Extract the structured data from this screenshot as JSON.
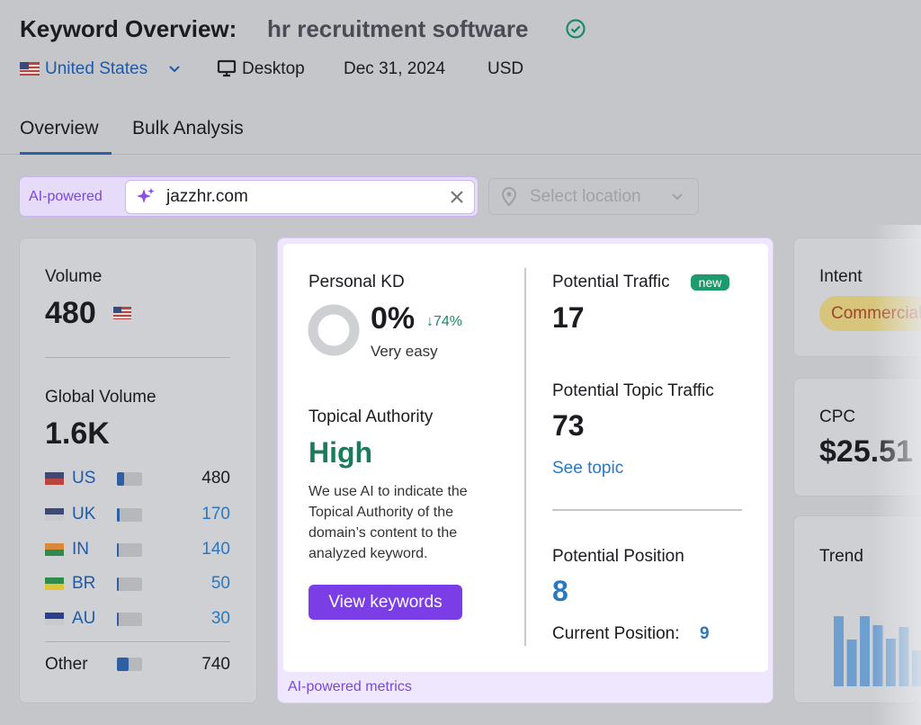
{
  "header": {
    "title": "Keyword Overview:",
    "keyword": "hr recruitment software",
    "country": "United States",
    "device": "Desktop",
    "date": "Dec 31, 2024",
    "currency": "USD"
  },
  "tabs": [
    "Overview",
    "Bulk Analysis"
  ],
  "search": {
    "badge": "AI-powered",
    "domain": "jazzhr.com",
    "location_placeholder": "Select location"
  },
  "volume": {
    "label": "Volume",
    "value": 480,
    "global_label": "Global Volume",
    "global_value": "1.6K",
    "countries": [
      {
        "code": "US",
        "value": 480
      },
      {
        "code": "UK",
        "value": 170
      },
      {
        "code": "IN",
        "value": 140
      },
      {
        "code": "BR",
        "value": 50
      },
      {
        "code": "AU",
        "value": 30
      }
    ],
    "other": {
      "label": "Other",
      "value": 740
    }
  },
  "ai_metrics": {
    "personal_kd": {
      "label": "Personal KD",
      "value": "0%",
      "change": "↓74%",
      "difficulty": "Very easy"
    },
    "topical_authority": {
      "label": "Topical Authority",
      "value": "High",
      "description": "We use AI to indicate the Topical Authority of the domain’s content to the analyzed keyword.",
      "button": "View keywords"
    },
    "potential_traffic": {
      "label": "Potential Traffic",
      "badge": "new",
      "value": 17
    },
    "potential_topic_traffic": {
      "label": "Potential Topic Traffic",
      "value": 73,
      "link": "See topic"
    },
    "potential_position": {
      "label": "Potential Position",
      "value": 8,
      "current_label": "Current Position:",
      "current_value": 9
    },
    "footer": "AI-powered metrics"
  },
  "intent": {
    "label": "Intent",
    "value": "Commercial"
  },
  "cpc": {
    "label": "CPC",
    "value": "$25.51"
  },
  "trend": {
    "label": "Trend",
    "values": [
      78,
      52,
      78,
      68,
      53,
      66,
      40
    ]
  }
}
